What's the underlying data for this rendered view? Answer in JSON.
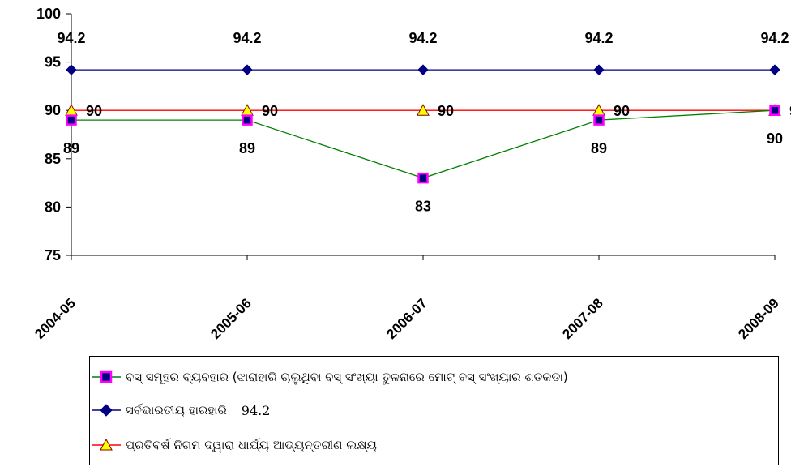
{
  "chart_data": {
    "type": "line",
    "categories": [
      "2004-05",
      "2005-06",
      "2006-07",
      "2007-08",
      "2008-09"
    ],
    "ylim": [
      75,
      100
    ],
    "yticks": [
      75,
      80,
      85,
      90,
      95,
      100
    ],
    "grid": false,
    "legend_placement": "bottom",
    "series": [
      {
        "key": "fleet",
        "name": "ବସ୍ ସମୂହର ବ୍ୟବହାର (ଝାରାହାରି ଚାଲୁଥିବା ବସ୍ ସଂଖ୍ୟା ତୁଳନାରେ ମୋଟ୍ ବସ୍ ସଂଖ୍ୟାର ଶତକଡା)",
        "values": [
          89,
          89,
          83,
          89,
          90
        ],
        "color": "#008000",
        "marker": "square",
        "marker_fill": "#000080",
        "marker_edge": "#ff00ff"
      },
      {
        "key": "national",
        "name": "ସର୍ବଭାରତୀୟ ହାରହାରି",
        "legend_value": "94.2",
        "values": [
          94.2,
          94.2,
          94.2,
          94.2,
          94.2
        ],
        "color": "#000080",
        "marker": "diamond",
        "marker_fill": "#000080",
        "marker_edge": "#000080"
      },
      {
        "key": "target",
        "name": "ପ୍ରତିବର୍ଷ ନିଗମ ଦ୍ୱାରା ଧାର୍ଯ୍ୟ ଆଭ୍ୟନ୍ତରୀଣ ଲକ୍ଷ୍ୟ",
        "values": [
          90,
          90,
          90,
          90,
          90
        ],
        "color": "#ff0000",
        "marker": "triangle",
        "marker_fill": "#ffff00",
        "marker_edge": "#800000"
      }
    ]
  }
}
